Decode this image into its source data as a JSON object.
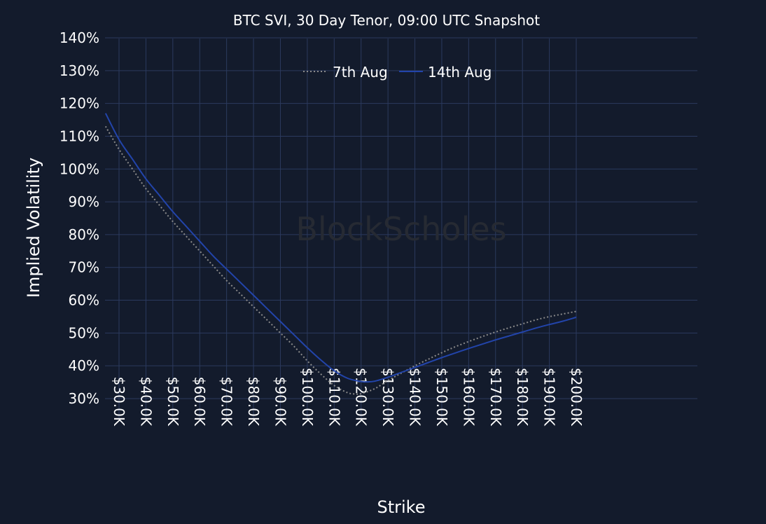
{
  "chart_data": {
    "type": "line",
    "title": "BTC SVI, 30 Day Tenor, 09:00 UTC Snapshot",
    "xlabel": "Strike",
    "ylabel": "Implied Volatility",
    "watermark": "BlockScholes",
    "xlim": [
      25,
      225
    ],
    "ylim": [
      25,
      140
    ],
    "x_ticks": [
      30,
      40,
      50,
      60,
      70,
      80,
      90,
      100,
      110,
      120,
      130,
      140,
      150,
      160,
      170,
      180,
      190,
      200
    ],
    "x_tick_labels": [
      "$30.0K",
      "$40.0K",
      "$50.0K",
      "$60.0K",
      "$70.0K",
      "$80.0K",
      "$90.0K",
      "$100.0K",
      "$110.0K",
      "$120.0K",
      "$130.0K",
      "$140.0K",
      "$150.0K",
      "$160.0K",
      "$170.0K",
      "$180.0K",
      "$190.0K",
      "$200.0K"
    ],
    "y_ticks": [
      30,
      40,
      50,
      60,
      70,
      80,
      90,
      100,
      110,
      120,
      130,
      140
    ],
    "y_tick_labels": [
      "30%",
      "40%",
      "50%",
      "60%",
      "70%",
      "80%",
      "90%",
      "100%",
      "110%",
      "120%",
      "130%",
      "140%"
    ],
    "grid": true,
    "legend_position": "top-center",
    "colors": {
      "background": "#131b2c",
      "grid": "#2b3a5e",
      "text": "#ffffff",
      "watermark": "#262a33"
    },
    "series": [
      {
        "name": "7th Aug",
        "color": "#8a8a8a",
        "style": "dotted",
        "x": [
          25,
          30,
          35,
          40,
          45,
          50,
          55,
          60,
          65,
          70,
          75,
          80,
          85,
          90,
          95,
          100,
          105,
          110,
          115,
          118,
          120,
          125,
          130,
          135,
          140,
          145,
          150,
          155,
          160,
          165,
          170,
          175,
          180,
          185,
          190,
          195,
          200
        ],
        "values": [
          113,
          106,
          100,
          94,
          89,
          84,
          79.5,
          75,
          70.5,
          66,
          62,
          58,
          54,
          50,
          46,
          41.5,
          37.5,
          34,
          31.8,
          31.4,
          31.5,
          33,
          35.5,
          37.8,
          40,
          42,
          44,
          45.8,
          47.4,
          48.9,
          50.3,
          51.6,
          52.8,
          54,
          55,
          55.8,
          56.6
        ]
      },
      {
        "name": "14th Aug",
        "color": "#2244aa",
        "style": "solid",
        "x": [
          25,
          30,
          35,
          40,
          45,
          50,
          55,
          60,
          65,
          70,
          75,
          80,
          85,
          90,
          95,
          100,
          105,
          110,
          115,
          120,
          122,
          125,
          130,
          135,
          140,
          145,
          150,
          155,
          160,
          165,
          170,
          175,
          180,
          185,
          190,
          195,
          200
        ],
        "values": [
          117,
          109,
          103,
          97,
          92,
          87,
          82.5,
          78,
          73.5,
          69.5,
          65.5,
          61.5,
          57.5,
          53.5,
          49.5,
          45.5,
          41.8,
          38.5,
          36.2,
          35.2,
          35.1,
          35.3,
          36.5,
          38,
          39.5,
          41,
          42.5,
          43.9,
          45.3,
          46.6,
          47.9,
          49.1,
          50.3,
          51.5,
          52.6,
          53.6,
          54.8
        ]
      }
    ]
  }
}
